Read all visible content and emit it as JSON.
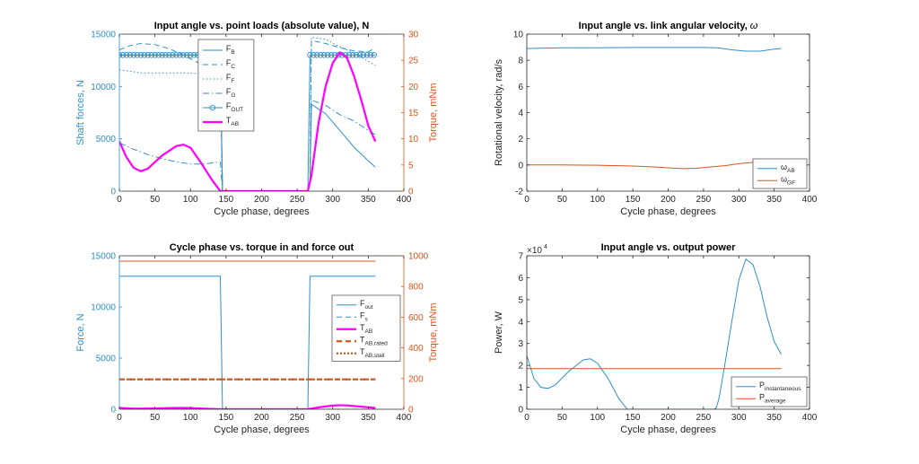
{
  "colors": {
    "blue": "#2f8fc6",
    "orange": "#d95319",
    "magenta": "#ff00ff",
    "axis": "#262626"
  },
  "chart_data": [
    {
      "id": "loads",
      "type": "line",
      "title": "Input angle vs. point loads (absolute value), N",
      "xlabel": "Cycle phase, degrees",
      "ylabel": "Shaft forces, N",
      "y2label": "Torque, mNm",
      "xlim": [
        0,
        400
      ],
      "ylim": [
        0,
        15000
      ],
      "y2lim": [
        0,
        30
      ],
      "xticks": [
        0,
        50,
        100,
        150,
        200,
        250,
        300,
        350,
        400
      ],
      "yticks": [
        0,
        5000,
        10000,
        15000
      ],
      "y2ticks": [
        0,
        5,
        10,
        15,
        20,
        25,
        30
      ],
      "legend_position": "top-middle",
      "series": [
        {
          "name": "F",
          "sub": "B",
          "axis": "left",
          "style": "solid",
          "color": "#2f8fc6",
          "x": [
            0,
            20,
            40,
            60,
            80,
            100,
            120,
            140,
            142,
            145,
            180,
            220,
            265,
            268,
            270,
            290,
            310,
            330,
            350,
            360
          ],
          "y": [
            13000,
            13000,
            13000,
            13000,
            13000,
            13000,
            13000,
            13000,
            13000,
            0,
            0,
            0,
            0,
            1000,
            8300,
            7400,
            5800,
            4200,
            2900,
            2300
          ]
        },
        {
          "name": "F",
          "sub": "C",
          "axis": "left",
          "style": "dash",
          "color": "#2f8fc6",
          "x": [
            0,
            15,
            30,
            50,
            70,
            90,
            110,
            130,
            142,
            145,
            265,
            268,
            270,
            290,
            310,
            330,
            350,
            360
          ],
          "y": [
            13500,
            13900,
            14100,
            14000,
            13600,
            13000,
            12300,
            11700,
            11400,
            0,
            0,
            1000,
            14400,
            14100,
            13700,
            13400,
            13300,
            13700
          ]
        },
        {
          "name": "F",
          "sub": "F",
          "axis": "left",
          "style": "dot",
          "color": "#2f8fc6",
          "x": [
            0,
            30,
            60,
            90,
            120,
            142,
            145,
            265,
            268,
            270,
            290,
            310,
            330,
            350,
            360
          ],
          "y": [
            11600,
            11300,
            11300,
            11300,
            11200,
            11200,
            0,
            0,
            1000,
            14700,
            14500,
            13800,
            13200,
            12400,
            12000
          ]
        },
        {
          "name": "F",
          "sub": "G",
          "axis": "left",
          "style": "dashdot",
          "color": "#2f8fc6",
          "x": [
            0,
            20,
            40,
            60,
            80,
            100,
            120,
            142,
            145,
            265,
            268,
            270,
            290,
            310,
            330,
            350,
            360
          ],
          "y": [
            4600,
            4000,
            3500,
            3100,
            2800,
            2600,
            2600,
            2800,
            0,
            0,
            1000,
            8700,
            8200,
            7300,
            6700,
            5800,
            5400
          ]
        },
        {
          "name": "F",
          "sub": "OUT",
          "axis": "left",
          "style": "solid-marker",
          "color": "#2f8fc6",
          "x": [
            0,
            142,
            145,
            265,
            268,
            360
          ],
          "y": [
            13000,
            13000,
            0,
            0,
            13000,
            13000
          ]
        },
        {
          "name": "T",
          "sub": "AB",
          "axis": "right",
          "style": "thick",
          "color": "#ff00ff",
          "x": [
            0,
            10,
            20,
            30,
            40,
            60,
            80,
            90,
            100,
            115,
            130,
            142,
            145,
            265,
            270,
            280,
            290,
            300,
            310,
            320,
            330,
            340,
            350,
            360
          ],
          "y": [
            9.5,
            6.5,
            4.5,
            3.8,
            4.3,
            6.8,
            8.6,
            8.9,
            8.3,
            5.4,
            2.2,
            0,
            0,
            0,
            3,
            13,
            20,
            24.5,
            26.5,
            25.5,
            22,
            17.5,
            12.5,
            9.5
          ]
        }
      ]
    },
    {
      "id": "omega",
      "type": "line",
      "title": "Input angle vs. link angular velocity, ",
      "title_symbol": "ω",
      "xlabel": "Cycle phase, degrees",
      "ylabel": "Rotational velocity, rad/s",
      "xlim": [
        0,
        400
      ],
      "ylim": [
        -2,
        10
      ],
      "xticks": [
        0,
        50,
        100,
        150,
        200,
        250,
        300,
        350,
        400
      ],
      "yticks": [
        -2,
        0,
        2,
        4,
        6,
        8,
        10
      ],
      "legend_position": "bottom-right",
      "series": [
        {
          "name": "ω",
          "sub": "AB",
          "color": "#2f8fc6",
          "x": [
            0,
            50,
            100,
            150,
            200,
            250,
            270,
            290,
            310,
            330,
            350,
            360
          ],
          "y": [
            8.9,
            8.95,
            8.95,
            8.98,
            8.98,
            8.98,
            8.95,
            8.8,
            8.7,
            8.7,
            8.85,
            8.9
          ]
        },
        {
          "name": "ω",
          "sub": "GF",
          "color": "#d95319",
          "x": [
            0,
            50,
            100,
            150,
            180,
            200,
            220,
            240,
            260,
            280,
            300,
            320,
            340,
            360
          ],
          "y": [
            0,
            0,
            -0.02,
            -0.08,
            -0.15,
            -0.22,
            -0.28,
            -0.25,
            -0.15,
            -0.05,
            0.1,
            0.2,
            0.15,
            0.05
          ]
        }
      ]
    },
    {
      "id": "torqueforce",
      "type": "line",
      "title": "Cycle phase vs. torque in and force out",
      "xlabel": "Cycle phase, degrees",
      "ylabel": "Force, N",
      "y2label": "Torque, mNm",
      "xlim": [
        0,
        400
      ],
      "ylim": [
        0,
        15000
      ],
      "y2lim": [
        0,
        1000
      ],
      "xticks": [
        0,
        50,
        100,
        150,
        200,
        250,
        300,
        350,
        400
      ],
      "yticks": [
        0,
        5000,
        10000,
        15000
      ],
      "y2ticks": [
        0,
        200,
        400,
        600,
        800,
        1000
      ],
      "legend_position": "center-right",
      "series": [
        {
          "name": "F",
          "sub": "out",
          "axis": "left",
          "style": "solid",
          "color": "#2f8fc6",
          "x": [
            0,
            142,
            145,
            265,
            268,
            360
          ],
          "y": [
            13000,
            13000,
            0,
            0,
            13000,
            13000
          ]
        },
        {
          "name": "F",
          "sub": "s",
          "axis": "left",
          "style": "dash",
          "color": "#2f8fc6",
          "x": [
            0,
            360
          ],
          "y": [
            0,
            0
          ]
        },
        {
          "name": "T",
          "sub": "AB",
          "axis": "right",
          "style": "thick",
          "color": "#ff00ff",
          "x": [
            0,
            20,
            40,
            60,
            80,
            90,
            100,
            120,
            142,
            145,
            265,
            280,
            300,
            310,
            320,
            340,
            360
          ],
          "y": [
            9,
            4,
            4.5,
            7,
            8.5,
            9,
            8,
            4,
            0,
            0,
            0,
            12,
            24,
            26.5,
            25,
            17,
            9
          ]
        },
        {
          "name": "T",
          "sub": "AB,rated",
          "axis": "right",
          "style": "thick-dash",
          "color": "#d95319",
          "x": [
            0,
            360
          ],
          "y": [
            195,
            195
          ]
        },
        {
          "name": "T",
          "sub": "AB,stall",
          "axis": "right",
          "style": "thick-dot",
          "color": "#d95319",
          "x": [
            0,
            360
          ],
          "y": [
            195,
            195
          ]
        },
        {
          "name": "",
          "sub": "",
          "axis": "right",
          "style": "solid",
          "color": "#d95319",
          "x": [
            0,
            360
          ],
          "y": [
            965,
            965
          ]
        }
      ]
    },
    {
      "id": "power",
      "type": "line",
      "title": "Input angle vs. output power",
      "xlabel": "Cycle phase, degrees",
      "ylabel": "Power, W",
      "exponent": "4",
      "xlim": [
        0,
        400
      ],
      "ylim": [
        0,
        7
      ],
      "xticks": [
        0,
        50,
        100,
        150,
        200,
        250,
        300,
        350,
        400
      ],
      "yticks": [
        0,
        1,
        2,
        3,
        4,
        5,
        6,
        7
      ],
      "legend_position": "bottom-right",
      "series": [
        {
          "name": "P",
          "sub": "instantaneous",
          "color": "#2f8fc6",
          "x": [
            0,
            10,
            20,
            30,
            40,
            60,
            80,
            90,
            100,
            115,
            130,
            142,
            145,
            265,
            268,
            272,
            280,
            290,
            300,
            310,
            320,
            330,
            340,
            350,
            360
          ],
          "y": [
            2.45,
            1.4,
            1.0,
            0.95,
            1.1,
            1.75,
            2.25,
            2.3,
            2.1,
            1.4,
            0.5,
            0,
            0,
            0,
            0.05,
            0.5,
            2.0,
            4.0,
            5.9,
            6.85,
            6.6,
            5.6,
            4.2,
            3.1,
            2.5
          ]
        },
        {
          "name": "P",
          "sub": "average",
          "color": "#d95319",
          "x": [
            0,
            360
          ],
          "y": [
            1.85,
            1.85
          ]
        }
      ]
    }
  ]
}
